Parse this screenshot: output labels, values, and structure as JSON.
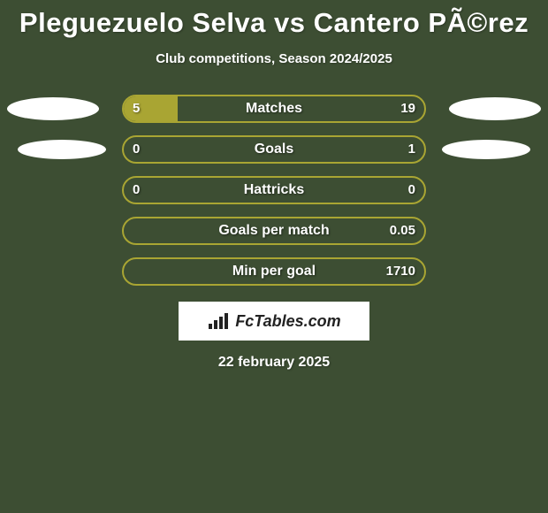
{
  "title": "Pleguezuelo Selva vs Cantero PÃ©rez",
  "subtitle": "Club competitions, Season 2024/2025",
  "date": "22 february 2025",
  "logo": {
    "text": "FcTables.com"
  },
  "bar_color": "#a9a533",
  "bg_color": "#3d4e33",
  "rows": [
    {
      "label": "Matches",
      "left": "5",
      "right": "19",
      "left_pct": 18,
      "right_pct": 0,
      "show_left_ellipse": true,
      "show_right_ellipse": true,
      "ellipse_size": "big"
    },
    {
      "label": "Goals",
      "left": "0",
      "right": "1",
      "left_pct": 0,
      "right_pct": 0,
      "show_left_ellipse": true,
      "show_right_ellipse": true,
      "ellipse_size": "small"
    },
    {
      "label": "Hattricks",
      "left": "0",
      "right": "0",
      "left_pct": 0,
      "right_pct": 0,
      "show_left_ellipse": false,
      "show_right_ellipse": false,
      "ellipse_size": "none"
    },
    {
      "label": "Goals per match",
      "left": "",
      "right": "0.05",
      "left_pct": 0,
      "right_pct": 0,
      "show_left_ellipse": false,
      "show_right_ellipse": false,
      "ellipse_size": "none"
    },
    {
      "label": "Min per goal",
      "left": "",
      "right": "1710",
      "left_pct": 0,
      "right_pct": 0,
      "show_left_ellipse": false,
      "show_right_ellipse": false,
      "ellipse_size": "none"
    }
  ]
}
